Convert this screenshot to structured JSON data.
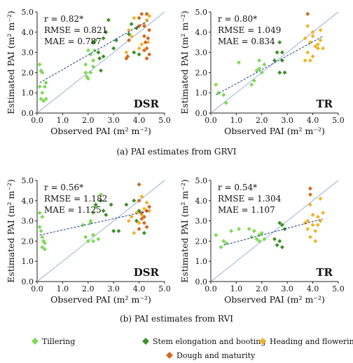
{
  "figure": {
    "captions": [
      "(a)  PAI estimates from GRVI",
      "(b)  PAI estimates from RVI"
    ],
    "legend": [
      {
        "label": "Tillering",
        "color": "#7ed957"
      },
      {
        "label": "Stem elongation and booting",
        "color": "#3f8f2a"
      },
      {
        "label": "Heading and flowering",
        "color": "#f0b429"
      },
      {
        "label": "Dough and maturity",
        "color": "#d2691e"
      }
    ]
  },
  "chart_data": [
    {
      "type": "scatter",
      "panel": "GRVI-DSR",
      "title": "DSR",
      "xlabel": "Observed PAI (m² m⁻²)",
      "ylabel": "Estimated PAI (m² m⁻²)",
      "xlim": [
        0,
        5
      ],
      "ylim": [
        0,
        5
      ],
      "xticks": [
        "0.0",
        "1.0",
        "2.0",
        "3.0",
        "4.0",
        "5.0"
      ],
      "yticks": [
        "0.0",
        "1.0",
        "2.0",
        "3.0",
        "4.0",
        "5.0"
      ],
      "stats": [
        "r = 0.82*",
        "RMSE = 0.821",
        "MAE = 0.787"
      ],
      "fit": [
        [
          0.1,
          1.5
        ],
        [
          4.4,
          4.6
        ]
      ],
      "series": [
        {
          "name": "Tillering",
          "color": "#7ed957",
          "points": [
            [
              0.1,
              2.4
            ],
            [
              0.15,
              2.1
            ],
            [
              0.2,
              2.0
            ],
            [
              0.1,
              1.3
            ],
            [
              0.2,
              1.0
            ],
            [
              0.15,
              0.7
            ],
            [
              0.25,
              0.6
            ],
            [
              0.3,
              1.3
            ],
            [
              0.35,
              1.5
            ],
            [
              0.35,
              0.7
            ],
            [
              1.9,
              2.4
            ],
            [
              1.95,
              1.8
            ],
            [
              2.0,
              1.7
            ],
            [
              2.0,
              3.1
            ],
            [
              2.1,
              2.9
            ],
            [
              2.2,
              2.6
            ],
            [
              2.25,
              3.1
            ],
            [
              2.2,
              2.3
            ],
            [
              2.3,
              3.6
            ],
            [
              2.1,
              2.0
            ],
            [
              1.9,
              2.0
            ]
          ]
        },
        {
          "name": "Stem elongation and booting",
          "color": "#3f8f2a",
          "points": [
            [
              2.2,
              3.5
            ],
            [
              2.4,
              3.0
            ],
            [
              2.45,
              2.7
            ],
            [
              2.5,
              2.1
            ],
            [
              2.6,
              2.8
            ],
            [
              2.7,
              4.0
            ],
            [
              2.8,
              4.6
            ],
            [
              2.6,
              3.7
            ],
            [
              3.0,
              3.2
            ],
            [
              3.1,
              3.6
            ],
            [
              3.6,
              3.9
            ],
            [
              3.8,
              3.0
            ],
            [
              3.9,
              4.2
            ],
            [
              3.7,
              4.4
            ],
            [
              4.0,
              2.9
            ]
          ]
        },
        {
          "name": "Heading and flowering",
          "color": "#f0b429",
          "points": [
            [
              3.5,
              3.0
            ],
            [
              3.6,
              4.1
            ],
            [
              3.7,
              3.8
            ],
            [
              3.8,
              4.7
            ],
            [
              4.1,
              3.4
            ],
            [
              4.2,
              4.4
            ],
            [
              4.3,
              4.6
            ],
            [
              4.35,
              3.5
            ],
            [
              4.0,
              3.2
            ],
            [
              4.4,
              4.8
            ]
          ]
        },
        {
          "name": "Dough and maturity",
          "color": "#d2691e",
          "points": [
            [
              3.5,
              2.7
            ],
            [
              3.55,
              2.8
            ],
            [
              3.6,
              3.6
            ],
            [
              4.0,
              4.7
            ],
            [
              4.1,
              4.9
            ],
            [
              4.2,
              4.3
            ],
            [
              4.2,
              3.1
            ],
            [
              4.25,
              3.5
            ],
            [
              4.3,
              2.7
            ],
            [
              4.35,
              3.7
            ],
            [
              4.3,
              4.9
            ],
            [
              4.4,
              4.1
            ],
            [
              4.2,
              3.8
            ],
            [
              4.3,
              3.2
            ],
            [
              4.0,
              4.3
            ],
            [
              4.4,
              2.9
            ]
          ]
        }
      ]
    },
    {
      "type": "scatter",
      "panel": "GRVI-TR",
      "title": "TR",
      "xlabel": "Observed PAI (m² m⁻²)",
      "ylabel": "Estimated PAI (m² m⁻²)",
      "xlim": [
        0,
        5
      ],
      "ylim": [
        0,
        5
      ],
      "xticks": [
        "0.0",
        "1.0",
        "2.0",
        "3.0",
        "4.0",
        "5.0"
      ],
      "yticks": [
        "0.0",
        "1.0",
        "2.0",
        "3.0",
        "4.0",
        "5.0"
      ],
      "stats": [
        "r = 0.80*",
        "RMSE = 1.049",
        "MAE = 0.834"
      ],
      "fit": [
        [
          0.2,
          0.9
        ],
        [
          4.4,
          3.8
        ]
      ],
      "series": [
        {
          "name": "Tillering",
          "color": "#7ed957",
          "points": [
            [
              0.2,
              1.4
            ],
            [
              0.3,
              1.0
            ],
            [
              0.5,
              0.9
            ],
            [
              0.6,
              0.5
            ],
            [
              1.1,
              2.5
            ],
            [
              1.6,
              1.4
            ],
            [
              1.7,
              1.6
            ],
            [
              1.8,
              2.1
            ],
            [
              1.9,
              2.2
            ],
            [
              1.9,
              2.6
            ],
            [
              2.0,
              2.0
            ],
            [
              2.1,
              2.4
            ]
          ]
        },
        {
          "name": "Stem elongation and booting",
          "color": "#3f8f2a",
          "points": [
            [
              2.5,
              2.6
            ],
            [
              2.6,
              3.0
            ],
            [
              2.7,
              3.5
            ],
            [
              2.7,
              2.0
            ],
            [
              2.8,
              3.0
            ],
            [
              2.9,
              2.0
            ],
            [
              2.8,
              2.6
            ]
          ]
        },
        {
          "name": "Heading and flowering",
          "color": "#f0b429",
          "points": [
            [
              3.7,
              2.6
            ],
            [
              3.8,
              4.3
            ],
            [
              3.8,
              3.0
            ],
            [
              3.9,
              2.6
            ],
            [
              3.9,
              3.5
            ],
            [
              4.0,
              3.8
            ],
            [
              4.0,
              4.0
            ],
            [
              4.0,
              2.8
            ],
            [
              4.1,
              3.3
            ],
            [
              4.2,
              3.4
            ],
            [
              4.2,
              3.2
            ],
            [
              4.3,
              4.1
            ],
            [
              4.3,
              3.6
            ],
            [
              4.4,
              3.2
            ],
            [
              3.7,
              3.7
            ]
          ]
        },
        {
          "name": "Dough and maturity",
          "color": "#d2691e",
          "points": [
            [
              3.8,
              4.9
            ]
          ]
        }
      ]
    },
    {
      "type": "scatter",
      "panel": "RVI-DSR",
      "title": "DSR",
      "xlabel": "Observed PAI (m² m⁻²)",
      "ylabel": "Estimated PAI (m² m⁻²)",
      "xlim": [
        0,
        5
      ],
      "ylim": [
        0,
        5
      ],
      "xticks": [
        "0.0",
        "1.0",
        "2.0",
        "3.0",
        "4.0",
        "5.0"
      ],
      "yticks": [
        "0.0",
        "1.0",
        "2.0",
        "3.0",
        "4.0",
        "5.0"
      ],
      "stats": [
        "r = 0.56*",
        "RMSE = 1.182",
        "MAE = 1.125"
      ],
      "fit": [
        [
          0.1,
          2.3
        ],
        [
          4.4,
          3.5
        ]
      ],
      "series": [
        {
          "name": "Tillering",
          "color": "#7ed957",
          "points": [
            [
              0.1,
              2.7
            ],
            [
              0.15,
              2.5
            ],
            [
              0.2,
              2.2
            ],
            [
              0.2,
              1.7
            ],
            [
              0.3,
              1.6
            ],
            [
              0.3,
              1.9
            ],
            [
              0.25,
              2.0
            ],
            [
              0.2,
              3.2
            ],
            [
              0.1,
              3.4
            ],
            [
              1.8,
              2.8
            ],
            [
              1.9,
              2.2
            ],
            [
              2.0,
              2.0
            ],
            [
              2.1,
              2.9
            ],
            [
              2.1,
              3.0
            ],
            [
              2.2,
              2.3
            ],
            [
              2.2,
              2.0
            ],
            [
              2.3,
              3.7
            ],
            [
              2.4,
              2.1
            ],
            [
              2.2,
              3.4
            ],
            [
              2.5,
              4.3
            ]
          ]
        },
        {
          "name": "Stem elongation and booting",
          "color": "#3f8f2a",
          "points": [
            [
              2.3,
              3.8
            ],
            [
              2.5,
              4.0
            ],
            [
              2.6,
              3.5
            ],
            [
              2.7,
              3.3
            ],
            [
              2.9,
              3.8
            ],
            [
              3.0,
              2.5
            ],
            [
              3.2,
              2.5
            ],
            [
              3.5,
              3.8
            ],
            [
              3.8,
              4.0
            ],
            [
              3.9,
              3.0
            ],
            [
              4.0,
              3.5
            ],
            [
              4.2,
              2.4
            ]
          ]
        },
        {
          "name": "Heading and flowering",
          "color": "#f0b429",
          "points": [
            [
              3.6,
              3.0
            ],
            [
              3.7,
              3.2
            ],
            [
              3.9,
              3.4
            ],
            [
              4.0,
              2.9
            ],
            [
              4.1,
              3.3
            ],
            [
              4.2,
              3.6
            ],
            [
              4.3,
              3.9
            ],
            [
              4.4,
              3.5
            ],
            [
              4.1,
              4.2
            ],
            [
              3.8,
              2.4
            ]
          ]
        },
        {
          "name": "Dough and maturity",
          "color": "#d2691e",
          "points": [
            [
              4.0,
              4.8
            ],
            [
              4.0,
              4.0
            ],
            [
              4.1,
              3.1
            ],
            [
              4.1,
              3.4
            ],
            [
              4.2,
              3.2
            ],
            [
              4.2,
              2.9
            ],
            [
              4.3,
              3.5
            ],
            [
              4.3,
              2.7
            ],
            [
              4.4,
              3.7
            ],
            [
              4.0,
              2.6
            ]
          ]
        }
      ]
    },
    {
      "type": "scatter",
      "panel": "RVI-TR",
      "title": "TR",
      "xlabel": "Observed PAI (m² m⁻²)",
      "ylabel": "Estimated PAI (m² m⁻²)",
      "xlim": [
        0,
        5
      ],
      "ylim": [
        0,
        5
      ],
      "xticks": [
        "0.0",
        "1.0",
        "2.0",
        "3.0",
        "4.0",
        "5.0"
      ],
      "yticks": [
        "0.0",
        "1.0",
        "2.0",
        "3.0",
        "4.0",
        "5.0"
      ],
      "stats": [
        "r = 0.54*",
        "RMSE = 1.304",
        "MAE = 1.107"
      ],
      "fit": [
        [
          0.5,
          1.8
        ],
        [
          4.4,
          3.1
        ]
      ],
      "series": [
        {
          "name": "Tillering",
          "color": "#7ed957",
          "points": [
            [
              0.2,
              2.3
            ],
            [
              0.4,
              1.7
            ],
            [
              0.5,
              2.0
            ],
            [
              0.6,
              1.9
            ],
            [
              0.8,
              2.5
            ],
            [
              1.1,
              2.6
            ],
            [
              1.5,
              2.6
            ],
            [
              1.6,
              2.2
            ],
            [
              1.7,
              2.5
            ],
            [
              1.8,
              2.1
            ],
            [
              1.9,
              2.3
            ],
            [
              1.9,
              2.0
            ],
            [
              2.0,
              2.4
            ],
            [
              2.1,
              2.1
            ]
          ]
        },
        {
          "name": "Stem elongation and booting",
          "color": "#3f8f2a",
          "points": [
            [
              2.5,
              2.1
            ],
            [
              2.6,
              1.8
            ],
            [
              2.7,
              2.9
            ],
            [
              2.7,
              2.0
            ],
            [
              2.8,
              1.7
            ],
            [
              2.8,
              2.8
            ],
            [
              2.9,
              2.6
            ]
          ]
        },
        {
          "name": "Heading and flowering",
          "color": "#f0b429",
          "points": [
            [
              3.7,
              2.9
            ],
            [
              3.8,
              3.0
            ],
            [
              3.8,
              2.6
            ],
            [
              3.9,
              2.2
            ],
            [
              4.0,
              3.3
            ],
            [
              4.0,
              2.8
            ],
            [
              4.1,
              2.5
            ],
            [
              4.1,
              2.0
            ],
            [
              4.2,
              3.2
            ],
            [
              4.3,
              4.1
            ],
            [
              4.3,
              3.0
            ],
            [
              4.2,
              2.8
            ],
            [
              3.9,
              3.8
            ],
            [
              4.4,
              3.4
            ]
          ]
        },
        {
          "name": "Dough and maturity",
          "color": "#d2691e",
          "points": [
            [
              3.9,
              4.6
            ],
            [
              3.9,
              4.3
            ]
          ]
        }
      ]
    }
  ]
}
